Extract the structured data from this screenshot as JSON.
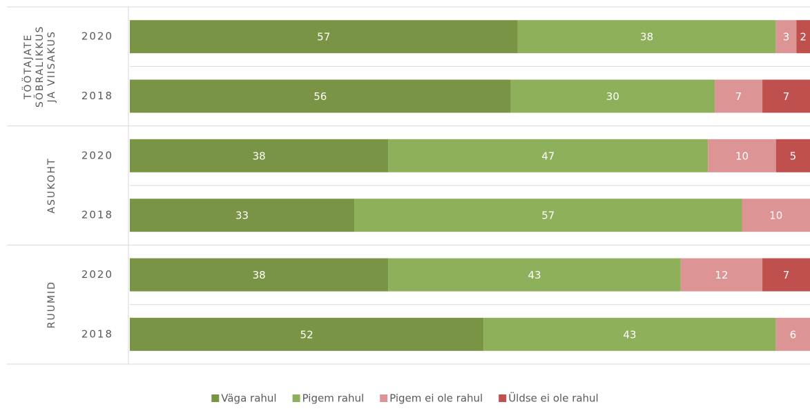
{
  "chart_data": {
    "type": "stacked-bar-horizontal",
    "groups": [
      {
        "label": [
          "TÖÖTAJATE",
          "SÕBRALIKKUS",
          "JA VIISAKUS"
        ]
      },
      {
        "label": [
          "ASUKOHT"
        ]
      },
      {
        "label": [
          "RUUMID"
        ]
      }
    ],
    "categories": [
      "2020",
      "2018",
      "2020",
      "2018",
      "2020",
      "2018"
    ],
    "xlim": [
      0,
      100
    ],
    "series": [
      {
        "name": "Väga rahul",
        "color": "#7a9445",
        "values": [
          57,
          56,
          38,
          33,
          38,
          52
        ]
      },
      {
        "name": "Pigem rahul",
        "color": "#8fb05a",
        "values": [
          38,
          30,
          47,
          57,
          43,
          43
        ]
      },
      {
        "name": "Pigem ei ole rahul",
        "color": "#dc9594",
        "values": [
          3,
          7,
          10,
          10,
          12,
          6
        ]
      },
      {
        "name": "Üldse ei ole rahul",
        "color": "#c0504d",
        "values": [
          2,
          7,
          5,
          null,
          7,
          null
        ]
      }
    ],
    "legend": "bottom"
  }
}
